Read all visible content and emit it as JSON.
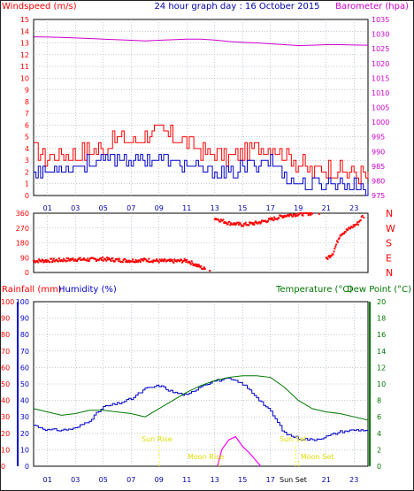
{
  "header": {
    "left_title": "Windspeed (m/s)",
    "center_title": "24 hour graph day : 16 October 2015",
    "right_title": "Barometer (hpa)"
  },
  "wind_dir_labels": [
    "N",
    "W",
    "S",
    "E",
    "N"
  ],
  "bottom_header": {
    "rainfall_label": "Rainfall (mm)",
    "humidity_label": "Humidity (%)",
    "temperature_label": "Temperature (°C)",
    "dewpoint_label": "Dew Point (°C)"
  },
  "events": {
    "sun_rise": "Sun Rise",
    "sun_set": "Sun Set",
    "moon_rise": "Moon Rise",
    "moon_set": "Moon Set"
  },
  "colors": {
    "wind_gust": "#ff0000",
    "wind_avg": "#0000cc",
    "barometer": "#cc00cc",
    "direction": "#ff0000",
    "humidity": "#0000cc",
    "temperature": "#007700",
    "rain": "#ff00ff",
    "event_text": "#ffff00",
    "grid": "#99aabb"
  },
  "chart_data": [
    {
      "type": "line",
      "title": "24 hour graph day : 16 October 2015",
      "ylabel": "Windspeed (m/s)",
      "ylim": [
        0,
        15
      ],
      "y_ticks": [
        "0",
        "1",
        "2",
        "3",
        "4",
        "5",
        "6",
        "7",
        "8",
        "9",
        "10",
        "11",
        "12",
        "13",
        "14",
        "15"
      ],
      "x_ticks": [
        "01",
        "03",
        "05",
        "07",
        "09",
        "11",
        "13",
        "15",
        "17",
        "19",
        "21",
        "23"
      ],
      "xlim": [
        0,
        24
      ],
      "grid": true,
      "series": [
        {
          "values": [
            3.8,
            3.2,
            3.6,
            3.5,
            3.8,
            4.1,
            5.0,
            4.6,
            5.2,
            5.4,
            5.0,
            4.6,
            3.8,
            3.5,
            3.3,
            3.6,
            4.0,
            4.2,
            3.6,
            2.8,
            2.0,
            2.4,
            2.2,
            1.8,
            1.6
          ]
        },
        {
          "values": [
            2.2,
            2.0,
            2.4,
            2.6,
            2.8,
            3.0,
            3.2,
            3.0,
            3.2,
            3.0,
            2.8,
            2.6,
            2.2,
            2.0,
            1.8,
            2.4,
            2.8,
            3.0,
            1.8,
            0.9,
            0.8,
            1.0,
            1.2,
            0.8,
            0.6
          ]
        }
      ]
    },
    {
      "type": "line",
      "ylabel": "Barometer (hpa)",
      "ylim": [
        975,
        1035
      ],
      "y_ticks": [
        "975",
        "980",
        "985",
        "990",
        "995",
        "1000",
        "1005",
        "1010",
        "1015",
        "1020",
        "1025",
        "1030",
        "1035"
      ],
      "series": [
        {
          "values": [
            1029.1,
            1029.0,
            1028.9,
            1028.7,
            1028.5,
            1028.3,
            1028.1,
            1027.9,
            1027.7,
            1027.9,
            1028.1,
            1028.3,
            1028.3,
            1028.0,
            1027.5,
            1027.2,
            1027.0,
            1026.7,
            1026.4,
            1026.1,
            1026.2,
            1026.4,
            1026.4,
            1026.3,
            1026.2
          ]
        }
      ]
    },
    {
      "type": "scatter",
      "ylim": [
        0,
        360
      ],
      "y_ticks": [
        "0",
        "90",
        "180",
        "270",
        "360"
      ],
      "series": [
        {
          "points": [
            [
              0,
              70
            ],
            [
              1,
              72
            ],
            [
              2,
              75
            ],
            [
              3,
              80
            ],
            [
              4,
              78
            ],
            [
              5,
              82
            ],
            [
              6,
              75
            ],
            [
              7,
              72
            ],
            [
              8,
              76
            ],
            [
              9,
              70
            ],
            [
              10,
              68
            ],
            [
              11,
              72
            ],
            [
              11.8,
              40
            ],
            [
              12.3,
              20
            ],
            [
              13,
              330
            ],
            [
              14,
              300
            ],
            [
              15,
              290
            ],
            [
              16,
              300
            ],
            [
              17,
              320
            ],
            [
              18,
              345
            ],
            [
              19,
              355
            ],
            [
              20,
              360
            ],
            [
              21,
              80
            ],
            [
              21.5,
              120
            ],
            [
              22,
              230
            ],
            [
              23.3,
              300
            ],
            [
              23.6,
              340
            ],
            [
              23.8,
              90
            ]
          ]
        }
      ]
    },
    {
      "type": "line",
      "ylabel": "Humidity (%)",
      "ylim": [
        0,
        100
      ],
      "y_ticks": [
        "0",
        "10",
        "20",
        "30",
        "40",
        "50",
        "60",
        "70",
        "80",
        "90",
        "100"
      ],
      "x_ticks": [
        "01",
        "03",
        "05",
        "07",
        "09",
        "11",
        "13",
        "15",
        "17",
        "19",
        "21",
        "23"
      ],
      "series": [
        {
          "values": [
            25,
            22,
            22,
            23,
            28,
            36,
            38,
            41,
            47,
            49,
            45,
            43,
            49,
            52,
            53,
            50,
            42,
            33,
            20,
            17,
            16,
            18,
            21,
            22,
            22
          ]
        }
      ]
    },
    {
      "type": "line",
      "ylabel": "Temperature (°C)",
      "ylim": [
        0,
        20
      ],
      "y_ticks": [
        "0",
        "2",
        "4",
        "6",
        "8",
        "10",
        "12",
        "14",
        "16",
        "18",
        "20"
      ],
      "series": [
        {
          "values": [
            7.0,
            6.6,
            6.2,
            6.4,
            6.8,
            6.8,
            6.6,
            6.4,
            6.0,
            7.0,
            8.0,
            9.0,
            9.8,
            10.4,
            10.8,
            11.0,
            11.0,
            10.8,
            9.6,
            8.0,
            7.0,
            6.6,
            6.4,
            6.0,
            5.6
          ]
        }
      ]
    },
    {
      "type": "line",
      "ylabel": "Rainfall (mm)",
      "series": [
        {
          "points": [
            [
              13.2,
              0
            ],
            [
              13.5,
              1
            ],
            [
              14,
              1.6
            ],
            [
              14.5,
              1.8
            ],
            [
              15,
              1.2
            ],
            [
              15.5,
              0.8
            ],
            [
              16,
              0.3
            ],
            [
              16.3,
              0
            ]
          ]
        }
      ]
    }
  ]
}
